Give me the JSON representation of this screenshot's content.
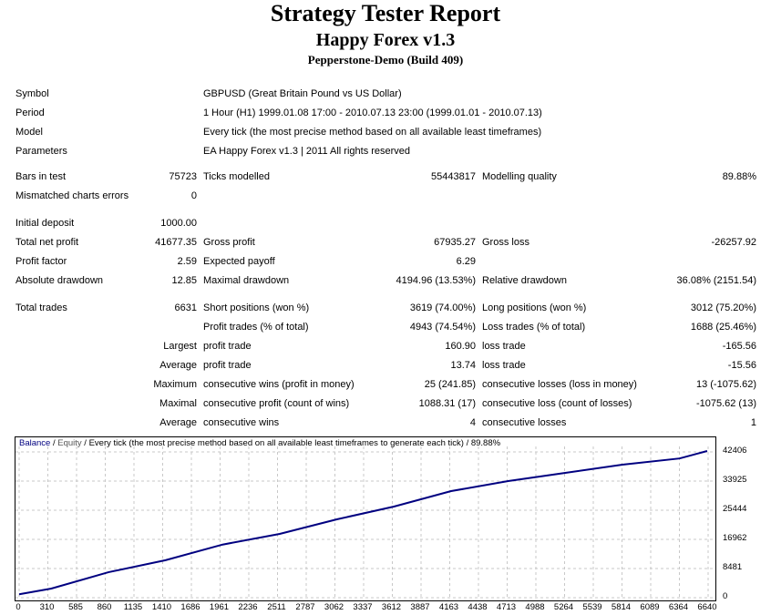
{
  "header": {
    "title": "Strategy Tester Report",
    "ea_name": "Happy Forex v1.3",
    "server": "Pepperstone-Demo (Build 409)"
  },
  "info": [
    {
      "label": "Symbol",
      "value": "GBPUSD (Great Britain Pound vs US Dollar)"
    },
    {
      "label": "Period",
      "value": "1 Hour (H1) 1999.01.08 17:00 - 2010.07.13 23:00 (1999.01.01 - 2010.07.13)"
    },
    {
      "label": "Model",
      "value": "Every tick (the most precise method based on all available least timeframes)"
    },
    {
      "label": "Parameters",
      "value": "EA Happy Forex v1.3 | 2011 All rights reserved"
    }
  ],
  "stats": [
    [
      "Bars in test",
      "75723",
      "Ticks modelled",
      "55443817",
      "Modelling quality",
      "89.88%"
    ],
    [
      "Mismatched charts errors",
      "0",
      "",
      "",
      "",
      ""
    ],
    [
      "Initial deposit",
      "1000.00",
      "",
      "",
      "",
      ""
    ],
    [
      "Total net profit",
      "41677.35",
      "Gross profit",
      "67935.27",
      "Gross loss",
      "-26257.92"
    ],
    [
      "Profit factor",
      "2.59",
      "Expected payoff",
      "6.29",
      "",
      ""
    ],
    [
      "Absolute drawdown",
      "12.85",
      "Maximal drawdown",
      "4194.96 (13.53%)",
      "Relative drawdown",
      "36.08% (2151.54)"
    ],
    [
      "Total trades",
      "6631",
      "Short positions (won %)",
      "3619 (74.00%)",
      "Long positions (won %)",
      "3012 (75.20%)"
    ],
    [
      "",
      "",
      "Profit trades (% of total)",
      "4943 (74.54%)",
      "Loss trades (% of total)",
      "1688 (25.46%)"
    ],
    [
      "Largest",
      "",
      "profit trade",
      "160.90",
      "loss trade",
      "-165.56"
    ],
    [
      "Average",
      "",
      "profit trade",
      "13.74",
      "loss trade",
      "-15.56"
    ],
    [
      "Maximum",
      "",
      "consecutive wins (profit in money)",
      "25 (241.85)",
      "consecutive losses (loss in money)",
      "13 (-1075.62)"
    ],
    [
      "Maximal",
      "",
      "consecutive profit (count of wins)",
      "1088.31 (17)",
      "consecutive loss (count of losses)",
      "-1075.62 (13)"
    ],
    [
      "Average",
      "",
      "consecutive wins",
      "4",
      "consecutive losses",
      "1"
    ]
  ],
  "chart_data": {
    "type": "line",
    "legend": {
      "balance": "Balance",
      "sep1": " / ",
      "equity": "Equity",
      "rest": " / Every tick (the most precise method based on all available least timeframes to generate each tick) / 89.88%"
    },
    "x_ticks": [
      "0",
      "310",
      "585",
      "860",
      "1135",
      "1410",
      "1686",
      "1961",
      "2236",
      "2511",
      "2787",
      "3062",
      "3337",
      "3612",
      "3887",
      "4163",
      "4438",
      "4713",
      "4988",
      "5264",
      "5539",
      "5814",
      "6089",
      "6364",
      "6640"
    ],
    "y_ticks": [
      "42406",
      "33925",
      "25444",
      "16962",
      "8481",
      "0"
    ],
    "xlim": [
      0,
      6640
    ],
    "ylim": [
      0,
      42406
    ],
    "grid": true,
    "series": [
      {
        "name": "Balance",
        "color": "#000080",
        "x": [
          0,
          310,
          860,
          1410,
          1961,
          2511,
          3062,
          3612,
          4163,
          4713,
          5264,
          5814,
          6364,
          6631
        ],
        "y": [
          1000,
          2650,
          7400,
          10900,
          15450,
          18550,
          22800,
          26500,
          31000,
          33925,
          36300,
          38700,
          40500,
          42677
        ]
      }
    ]
  }
}
